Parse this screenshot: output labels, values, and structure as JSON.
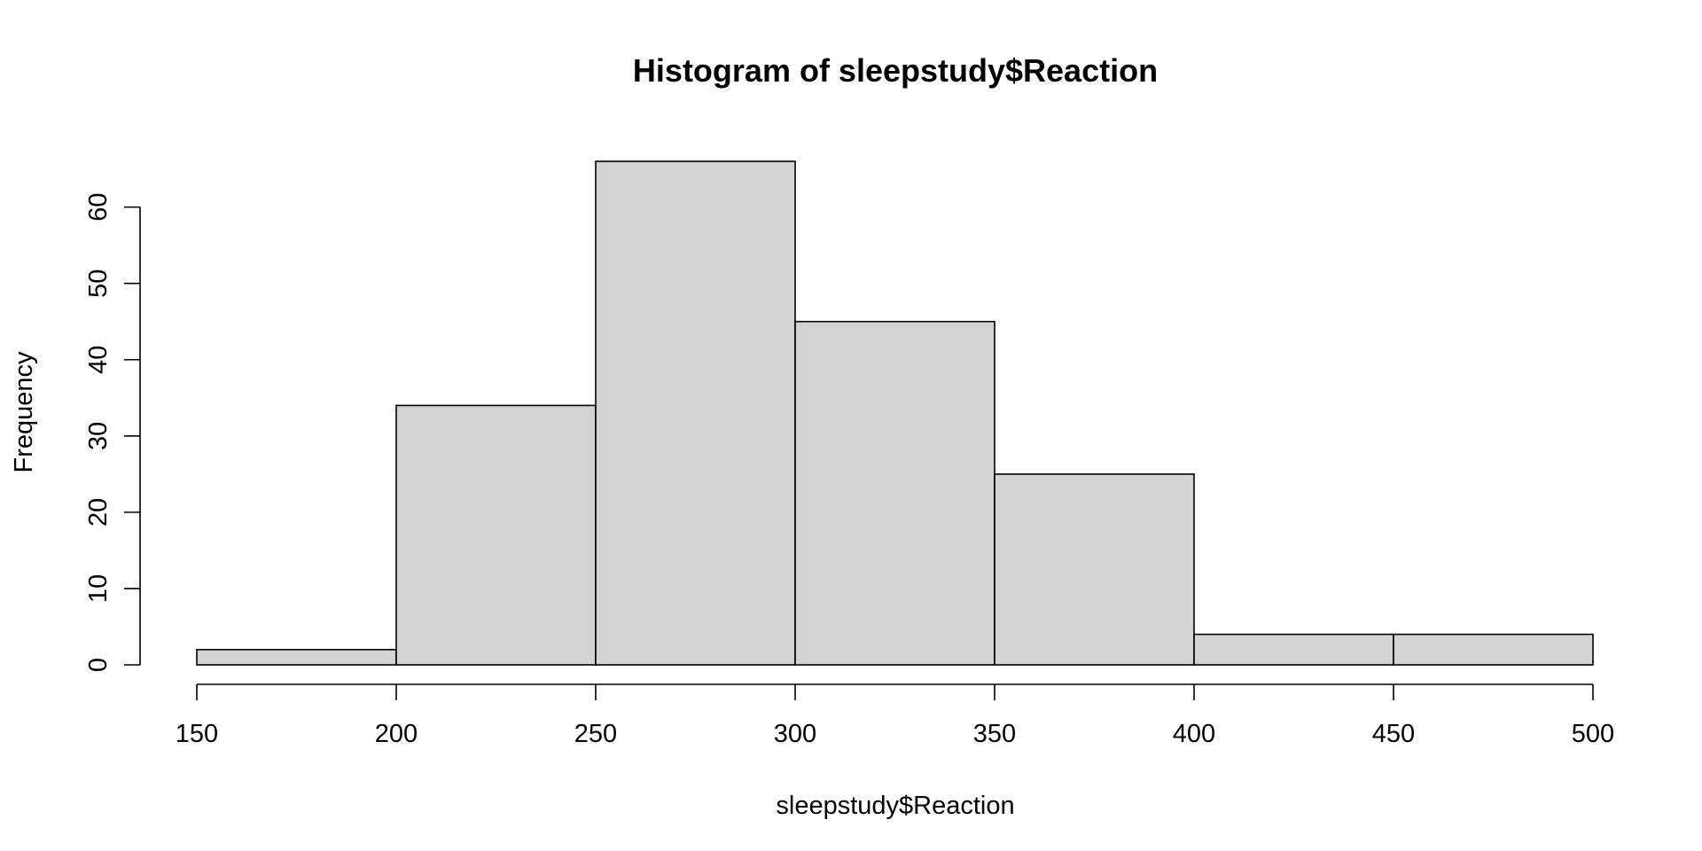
{
  "chart_data": {
    "type": "bar",
    "title": "Histogram of sleepstudy$Reaction",
    "xlabel": "sleepstudy$Reaction",
    "ylabel": "Frequency",
    "bin_edges": [
      150,
      200,
      250,
      300,
      350,
      400,
      450,
      500
    ],
    "values": [
      2,
      34,
      66,
      45,
      25,
      4,
      4
    ],
    "xlim": [
      150,
      500
    ],
    "ylim": [
      0,
      66
    ],
    "x_ticks": [
      "150",
      "200",
      "250",
      "300",
      "350",
      "400",
      "450",
      "500"
    ],
    "y_ticks": [
      "0",
      "10",
      "20",
      "30",
      "40",
      "50",
      "60"
    ],
    "grid": false,
    "legend": "none",
    "bar_fill": "#d3d3d3",
    "bar_stroke": "#000000"
  }
}
